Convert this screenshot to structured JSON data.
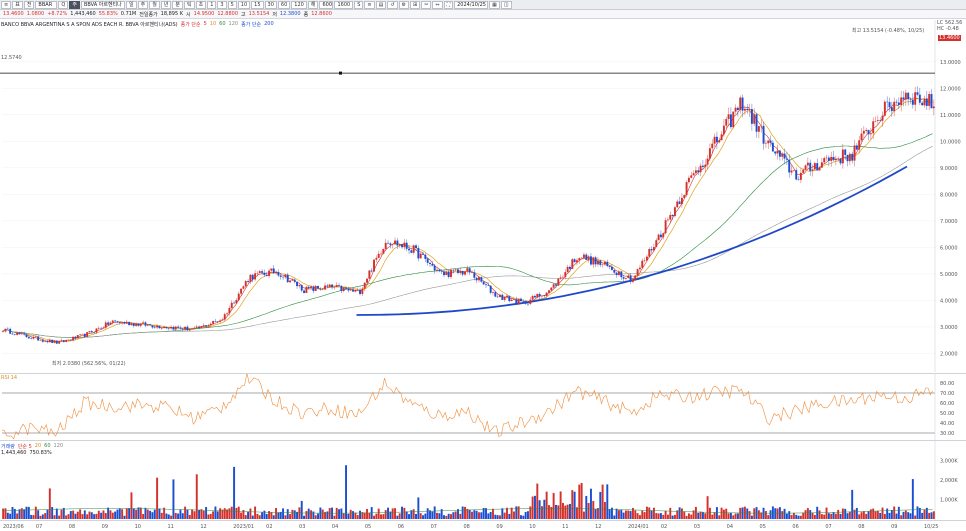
{
  "toolbar": {
    "code": "BBAR",
    "search_label": "Q",
    "name": "BBVA 아르헨티나",
    "flags": [
      "표",
      "전",
      "주",
      "해"
    ],
    "periods": [
      "일",
      "주",
      "월",
      "년",
      "분",
      "틱",
      "초"
    ],
    "numbers": [
      "1",
      "3",
      "5",
      "10",
      "15",
      "30",
      "60",
      "120"
    ],
    "count": "600",
    "count_btn": "1600",
    "date": "2024/10/25",
    "tools": [
      "S",
      "≡",
      "▤",
      "↺",
      "⚙",
      "⊞",
      "✂",
      "⇔",
      "⛶",
      "▦",
      "◫"
    ]
  },
  "quote": {
    "price": "13.4600",
    "change": "1.0800",
    "change_pct": "+8.72%",
    "volume": "1,443,460",
    "volume_pct": "55.83%",
    "value": "0.71M",
    "prev_label": "전일종가",
    "prev_val": "18,895 K",
    "open_label": "시",
    "open_val": "14.9500",
    "open_sub": "12.8800",
    "high_label": "고",
    "high_val": "13.5154",
    "low_label": "저",
    "low_val": "12.3800",
    "close_label": "종",
    "close_val": "12.8600"
  },
  "chart_title": "BANCO BBVA ARGENTINA S A SPON ADS EACH R. BBVA 아르헨티나(ADS)",
  "ma_legend": [
    {
      "label": "종가 단순",
      "value": "5",
      "color": "#d3312c"
    },
    {
      "label": "",
      "value": "10",
      "color": "#e08a1c"
    },
    {
      "label": "",
      "value": "60",
      "color": "#2c8a3c"
    },
    {
      "label": "",
      "value": "120",
      "color": "#8d8d8d"
    },
    {
      "label": "종가 단순",
      "value": "200",
      "color": "#1b4ed1"
    }
  ],
  "annotations": {
    "high": "최고 13.5154 (-0.48%, 10/25)",
    "low": "최저 2.0380 (562.56%, 01/22)",
    "hline_value": "12.5740",
    "current_label": "13.4600",
    "cur_top": "LC 562.56",
    "cur_sub": "HC -0.48"
  },
  "rsi": {
    "label": "RSI 14",
    "levels": [
      "80.00",
      "70.00",
      "60.00",
      "50.00",
      "40.00",
      "30.00"
    ]
  },
  "volume": {
    "label": "거래량",
    "ma_label": "단순 5",
    "ma_vals": [
      "20",
      "60",
      "120"
    ],
    "value": "1,443,460",
    "value_pct": "750.83%",
    "levels": [
      "3,000K",
      "2,000K",
      "1,000K"
    ],
    "current": "1,443K"
  },
  "chart_data": {
    "type": "candlestick",
    "y_axis": [
      "13.0000",
      "12.0000",
      "11.0000",
      "10.0000",
      "9.0000",
      "8.0000",
      "7.0000",
      "6.0000",
      "5.0000",
      "4.0000",
      "3.0000",
      "2.0000"
    ],
    "ylim": [
      1.3,
      14.2
    ],
    "x_axis": [
      "2023/06",
      "07",
      "08",
      "09",
      "10",
      "11",
      "12",
      "2023/01",
      "02",
      "03",
      "04",
      "05",
      "06",
      "07",
      "08",
      "09",
      "10",
      "11",
      "12",
      "2024/01",
      "02",
      "03",
      "04",
      "05",
      "06",
      "07",
      "08",
      "09",
      "10/25"
    ],
    "close_path": [
      [
        0,
        2.9
      ],
      [
        3,
        2.6
      ],
      [
        6,
        2.4
      ],
      [
        9,
        2.7
      ],
      [
        12,
        3.2
      ],
      [
        15,
        3.1
      ],
      [
        18,
        3.0
      ],
      [
        21,
        2.9
      ],
      [
        24,
        3.3
      ],
      [
        27,
        4.9
      ],
      [
        30,
        5.1
      ],
      [
        33,
        4.4
      ],
      [
        36,
        4.5
      ],
      [
        39,
        4.3
      ],
      [
        42,
        6.3
      ],
      [
        45,
        5.9
      ],
      [
        48,
        5.0
      ],
      [
        51,
        5.1
      ],
      [
        54,
        4.2
      ],
      [
        57,
        3.9
      ],
      [
        60,
        4.4
      ],
      [
        63,
        5.7
      ],
      [
        66,
        5.3
      ],
      [
        69,
        4.8
      ],
      [
        72,
        6.5
      ],
      [
        75,
        8.4
      ],
      [
        78,
        9.9
      ],
      [
        81,
        11.5
      ],
      [
        84,
        9.8
      ],
      [
        87,
        8.7
      ],
      [
        90,
        9.3
      ],
      [
        93,
        9.5
      ],
      [
        96,
        11.0
      ],
      [
        99,
        11.8
      ],
      [
        102,
        11.4
      ]
    ],
    "ma200_start": [
      0.38,
      3.45
    ],
    "ma200_end": [
      0.97,
      9.05
    ],
    "rsi_path": [
      [
        0,
        27
      ],
      [
        3,
        35
      ],
      [
        6,
        30
      ],
      [
        9,
        60
      ],
      [
        12,
        57
      ],
      [
        15,
        58
      ],
      [
        18,
        56
      ],
      [
        21,
        45
      ],
      [
        24,
        55
      ],
      [
        27,
        85
      ],
      [
        30,
        62
      ],
      [
        33,
        50
      ],
      [
        36,
        55
      ],
      [
        39,
        48
      ],
      [
        42,
        80
      ],
      [
        45,
        58
      ],
      [
        48,
        47
      ],
      [
        51,
        52
      ],
      [
        54,
        30
      ],
      [
        57,
        40
      ],
      [
        60,
        52
      ],
      [
        63,
        72
      ],
      [
        66,
        62
      ],
      [
        69,
        50
      ],
      [
        72,
        68
      ],
      [
        75,
        66
      ],
      [
        78,
        70
      ],
      [
        81,
        73
      ],
      [
        84,
        45
      ],
      [
        87,
        52
      ],
      [
        90,
        60
      ],
      [
        93,
        62
      ],
      [
        96,
        68
      ],
      [
        99,
        65
      ],
      [
        102,
        72
      ]
    ]
  }
}
